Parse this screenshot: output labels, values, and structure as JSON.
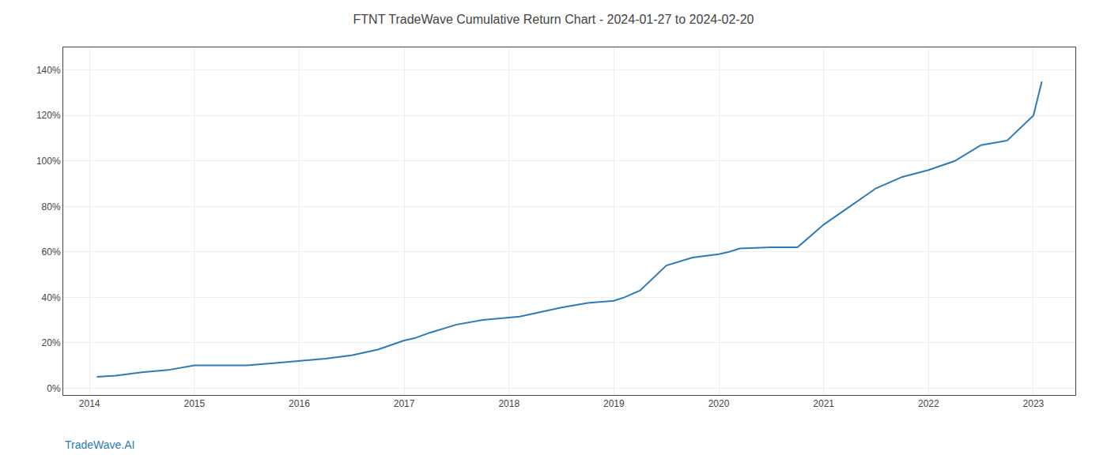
{
  "chart_data": {
    "type": "line",
    "title": "FTNT TradeWave Cumulative Return Chart - 2024-01-27 to 2024-02-20",
    "annotations": [
      "TradeWave.AI"
    ],
    "color": "#2c7bb6",
    "x": [
      2014.07,
      2014.25,
      2014.5,
      2014.75,
      2015.0,
      2015.25,
      2015.5,
      2015.75,
      2016.0,
      2016.1,
      2016.25,
      2016.5,
      2016.75,
      2017.0,
      2017.1,
      2017.25,
      2017.5,
      2017.75,
      2018.0,
      2018.1,
      2018.25,
      2018.5,
      2018.75,
      2019.0,
      2019.1,
      2019.25,
      2019.5,
      2019.75,
      2020.0,
      2020.1,
      2020.2,
      2020.5,
      2020.75,
      2021.0,
      2021.25,
      2021.5,
      2021.75,
      2022.0,
      2022.25,
      2022.5,
      2022.75,
      2023.0,
      2023.08
    ],
    "values": [
      0.05,
      0.055,
      0.07,
      0.08,
      0.1,
      0.1,
      0.1,
      0.11,
      0.12,
      0.125,
      0.13,
      0.145,
      0.17,
      0.21,
      0.22,
      0.245,
      0.28,
      0.3,
      0.31,
      0.315,
      0.33,
      0.355,
      0.375,
      0.385,
      0.4,
      0.43,
      0.54,
      0.575,
      0.59,
      0.6,
      0.615,
      0.62,
      0.62,
      0.72,
      0.8,
      0.88,
      0.93,
      0.96,
      1.0,
      1.07,
      1.09,
      1.2,
      1.35
    ],
    "xlim": [
      2013.75,
      2023.4
    ],
    "xticks": [
      2014,
      2015,
      2016,
      2017,
      2018,
      2019,
      2020,
      2021,
      2022,
      2023
    ],
    "ylim": [
      -0.03,
      1.5
    ],
    "yticks": [
      {
        "value": 0.0,
        "label": "0%"
      },
      {
        "value": 0.2,
        "label": "20%"
      },
      {
        "value": 0.4,
        "label": "40%"
      },
      {
        "value": 0.6,
        "label": "60%"
      },
      {
        "value": 0.8,
        "label": "80%"
      },
      {
        "value": 1.0,
        "label": "100%"
      },
      {
        "value": 1.2,
        "label": "120%"
      },
      {
        "value": 1.4,
        "label": "140%"
      }
    ],
    "grid": true
  }
}
